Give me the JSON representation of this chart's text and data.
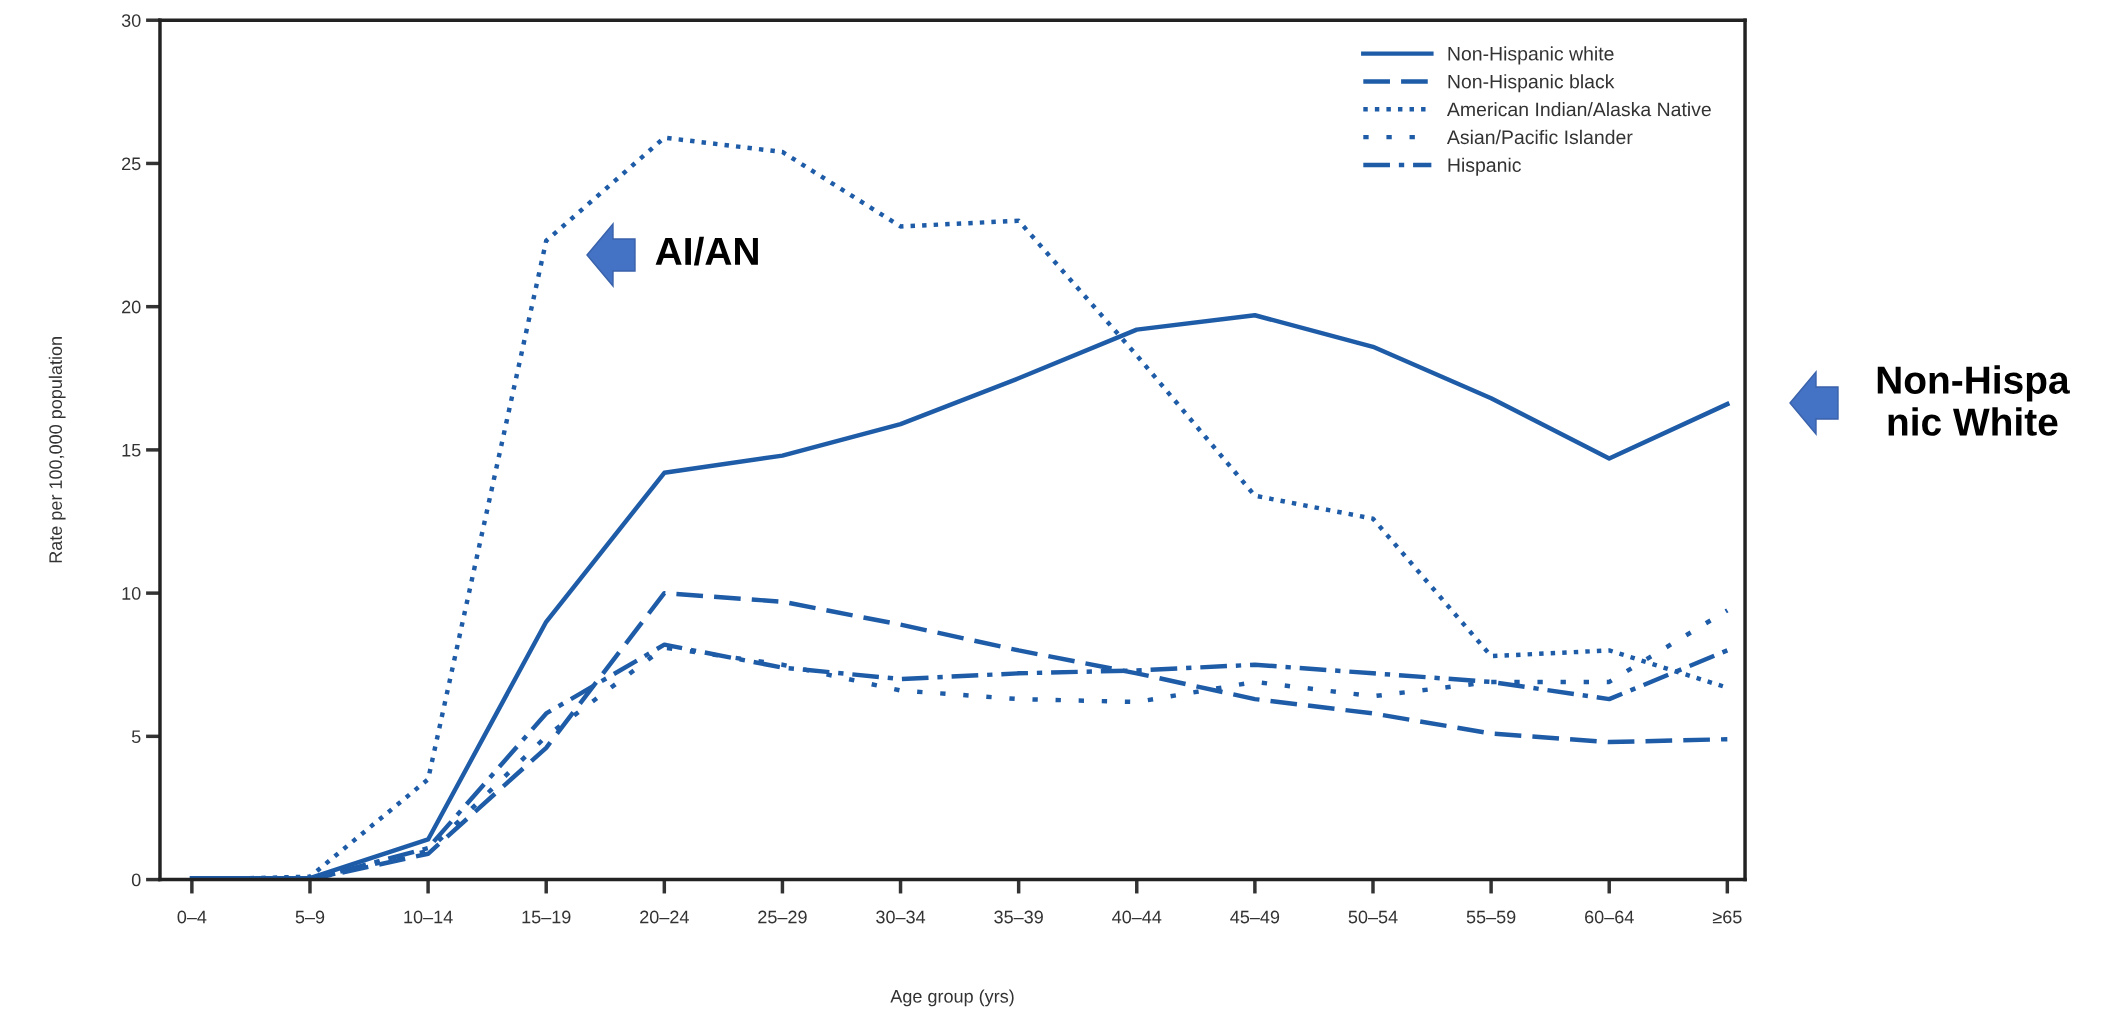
{
  "chart_data": {
    "type": "line",
    "xlabel": "Age group (yrs)",
    "ylabel": "Rate per 100,000 population",
    "categories": [
      "0–4",
      "5–9",
      "10–14",
      "15–19",
      "20–24",
      "25–29",
      "30–34",
      "35–39",
      "40–44",
      "45–49",
      "50–54",
      "55–59",
      "60–64",
      "≥65"
    ],
    "ylim": [
      0,
      30
    ],
    "yticks": [
      0,
      5,
      10,
      15,
      20,
      25,
      30
    ],
    "grid": false,
    "legend": "top right",
    "marker": "none",
    "series": [
      {
        "name": "Non-Hispanic white",
        "color": "#1f5ca8",
        "line_style": "solid",
        "values": [
          0.05,
          0.05,
          1.4,
          9.0,
          14.2,
          14.8,
          15.9,
          17.5,
          19.2,
          19.7,
          18.6,
          16.8,
          14.7,
          16.6
        ]
      },
      {
        "name": "Non-Hispanic black",
        "color": "#1f5ca8",
        "line_style": "dashed",
        "values": [
          0,
          0,
          0.9,
          4.6,
          10.0,
          9.7,
          8.9,
          8.0,
          7.2,
          6.3,
          5.8,
          5.1,
          4.8,
          4.9
        ]
      },
      {
        "name": "American Indian/Alaska Native",
        "color": "#1f5ca8",
        "line_style": "dotted",
        "values": [
          0,
          0.1,
          3.5,
          22.3,
          25.9,
          25.4,
          22.8,
          23.0,
          18.3,
          13.4,
          12.6,
          7.8,
          8.0,
          6.7
        ]
      },
      {
        "name": "Asian/Pacific Islander",
        "color": "#1f5ca8",
        "line_style": "loosely dotted",
        "values": [
          0,
          0,
          1.0,
          5.0,
          8.1,
          7.5,
          6.6,
          6.3,
          6.2,
          6.9,
          6.4,
          6.9,
          6.9,
          9.4
        ]
      },
      {
        "name": "Hispanic",
        "color": "#1f5ca8",
        "line_style": "dashdot",
        "values": [
          0,
          0,
          1.1,
          5.8,
          8.2,
          7.4,
          7.0,
          7.2,
          7.3,
          7.5,
          7.2,
          6.9,
          6.3,
          8.0
        ]
      }
    ],
    "annotations": [
      "AI/AN",
      "Non-Hispa\nnic White"
    ]
  }
}
